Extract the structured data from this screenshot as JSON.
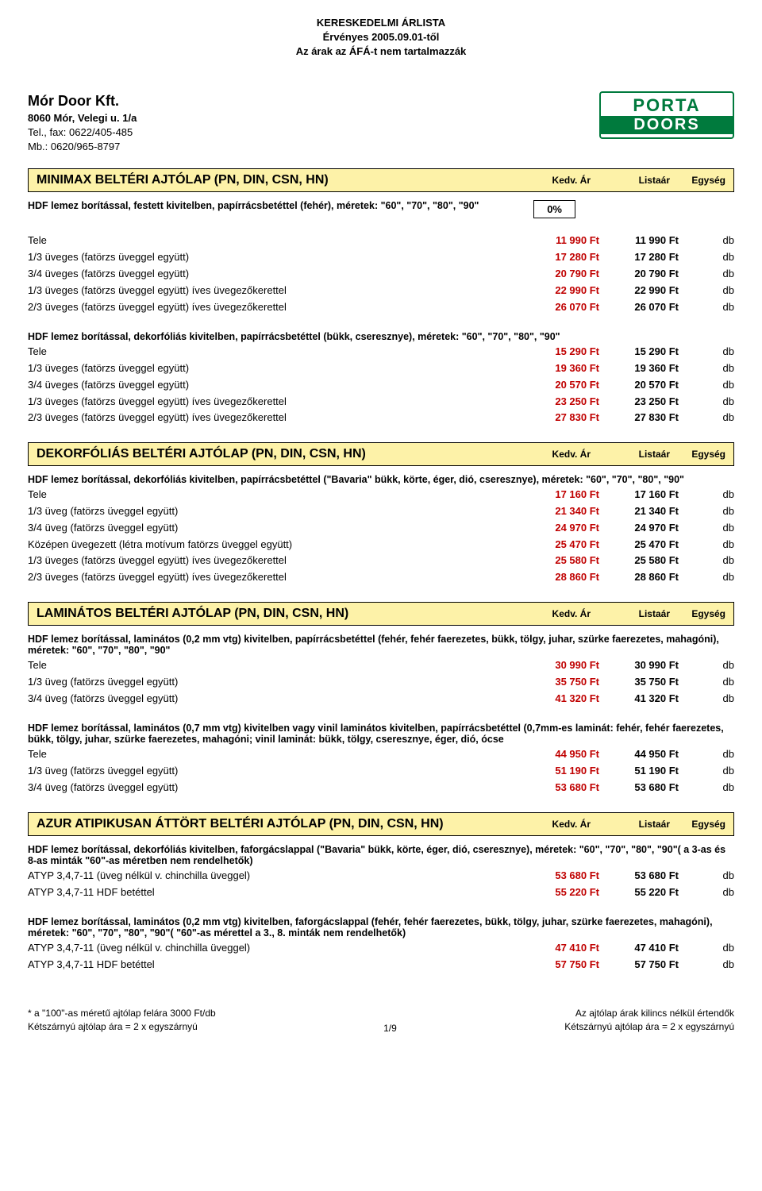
{
  "header": {
    "line1": "KERESKEDELMI ÁRLISTA",
    "line2": "Érvényes 2005.09.01-től",
    "line3": "Az árak az ÁFÁ-t nem tartalmazzák"
  },
  "company": {
    "name": "Mór Door Kft.",
    "addr": "8060 Mór, Velegi u. 1/a",
    "tel": "Tel., fax: 0622/405-485",
    "mob": "Mb.: 0620/965-8797"
  },
  "logo": {
    "l1": "PORTA",
    "l2": "DOORS"
  },
  "cols": {
    "c1": "Kedv. Ár",
    "c2": "Listaár",
    "c3": "Egység"
  },
  "sections": [
    {
      "title": "MINIMAX BELTÉRI AJTÓLAP (PN, DIN, CSN, HN)",
      "discount_desc": "HDF lemez borítással, festett kivitelben, papírrácsbetéttel (fehér), méretek: \"60\", \"70\", \"80\", \"90\"",
      "discount_pct": "0%",
      "groups": [
        {
          "rows": [
            {
              "label": "Tele",
              "p1": "11 990 Ft",
              "p2": "11 990 Ft",
              "unit": "db"
            },
            {
              "label": "1/3 üveges (fatörzs üveggel együtt)",
              "p1": "17 280 Ft",
              "p2": "17 280 Ft",
              "unit": "db"
            },
            {
              "label": "3/4 üveges (fatörzs üveggel együtt)",
              "p1": "20 790 Ft",
              "p2": "20 790 Ft",
              "unit": "db"
            },
            {
              "label": "1/3 üveges (fatörzs üveggel együtt) íves üvegezőkerettel",
              "p1": "22 990 Ft",
              "p2": "22 990 Ft",
              "unit": "db"
            },
            {
              "label": "2/3 üveges (fatörzs üveggel együtt) íves üvegezőkerettel",
              "p1": "26 070 Ft",
              "p2": "26 070 Ft",
              "unit": "db"
            }
          ]
        },
        {
          "subhead": "HDF lemez borítással, dekorfóliás kivitelben, papírrácsbetéttel (bükk, cseresznye), méretek: \"60\", \"70\", \"80\", \"90\"",
          "rows": [
            {
              "label": "Tele",
              "p1": "15 290 Ft",
              "p2": "15 290 Ft",
              "unit": "db"
            },
            {
              "label": "1/3 üveges (fatörzs üveggel együtt)",
              "p1": "19 360 Ft",
              "p2": "19 360 Ft",
              "unit": "db"
            },
            {
              "label": "3/4 üveges (fatörzs üveggel együtt)",
              "p1": "20 570 Ft",
              "p2": "20 570 Ft",
              "unit": "db"
            },
            {
              "label": "1/3 üveges (fatörzs üveggel együtt) íves üvegezőkerettel",
              "p1": "23 250 Ft",
              "p2": "23 250 Ft",
              "unit": "db"
            },
            {
              "label": "2/3 üveges (fatörzs üveggel együtt) íves üvegezőkerettel",
              "p1": "27 830 Ft",
              "p2": "27 830 Ft",
              "unit": "db"
            }
          ]
        }
      ]
    },
    {
      "title": "DEKORFÓLIÁS BELTÉRI AJTÓLAP (PN, DIN, CSN, HN)",
      "groups": [
        {
          "subhead": "HDF lemez borítással, dekorfóliás kivitelben, papírrácsbetéttel (\"Bavaria\" bükk, körte, éger, dió, cseresznye), méretek: \"60\", \"70\", \"80\", \"90\"",
          "rows": [
            {
              "label": "Tele",
              "p1": "17 160 Ft",
              "p2": "17 160 Ft",
              "unit": "db"
            },
            {
              "label": "1/3 üveg (fatörzs üveggel együtt)",
              "p1": "21 340 Ft",
              "p2": "21 340 Ft",
              "unit": "db"
            },
            {
              "label": "3/4 üveg (fatörzs üveggel együtt)",
              "p1": "24 970 Ft",
              "p2": "24 970 Ft",
              "unit": "db"
            },
            {
              "label": "Középen üvegezett (létra motívum fatörzs üveggel együtt)",
              "p1": "25 470 Ft",
              "p2": "25 470 Ft",
              "unit": "db"
            },
            {
              "label": "1/3 üveges (fatörzs üveggel együtt) íves üvegezőkerettel",
              "p1": "25 580 Ft",
              "p2": "25 580 Ft",
              "unit": "db"
            },
            {
              "label": "2/3 üveges (fatörzs üveggel együtt) íves üvegezőkerettel",
              "p1": "28 860 Ft",
              "p2": "28 860 Ft",
              "unit": "db"
            }
          ]
        }
      ]
    },
    {
      "title": "LAMINÁTOS BELTÉRI AJTÓLAP (PN, DIN, CSN, HN)",
      "groups": [
        {
          "subhead": "HDF lemez borítással, laminátos (0,2 mm vtg) kivitelben, papírrácsbetéttel (fehér, fehér faerezetes, bükk, tölgy, juhar, szürke faerezetes, mahagóni), méretek: \"60\", \"70\", \"80\", \"90\"",
          "rows": [
            {
              "label": "Tele",
              "p1": "30 990 Ft",
              "p2": "30 990 Ft",
              "unit": "db"
            },
            {
              "label": "1/3 üveg (fatörzs üveggel együtt)",
              "p1": "35 750 Ft",
              "p2": "35 750 Ft",
              "unit": "db"
            },
            {
              "label": "3/4 üveg (fatörzs üveggel együtt)",
              "p1": "41 320 Ft",
              "p2": "41 320 Ft",
              "unit": "db"
            }
          ]
        },
        {
          "subhead": "HDF lemez borítással, laminátos (0,7 mm vtg) kivitelben vagy vinil laminátos kivitelben, papírrácsbetéttel (0,7mm-es laminát: fehér, fehér faerezetes, bükk, tölgy, juhar, szürke faerezetes, mahagóni; vinil laminát: bükk, tölgy, cseresznye, éger, dió, ócse",
          "rows": [
            {
              "label": "Tele",
              "p1": "44 950 Ft",
              "p2": "44 950 Ft",
              "unit": "db"
            },
            {
              "label": "1/3 üveg (fatörzs üveggel együtt)",
              "p1": "51 190 Ft",
              "p2": "51 190 Ft",
              "unit": "db"
            },
            {
              "label": "3/4 üveg (fatörzs üveggel együtt)",
              "p1": "53 680 Ft",
              "p2": "53 680 Ft",
              "unit": "db"
            }
          ]
        }
      ]
    },
    {
      "title": "AZUR ATIPIKUSAN ÁTTÖRT BELTÉRI AJTÓLAP (PN, DIN, CSN, HN)",
      "groups": [
        {
          "subhead": "HDF lemez borítással,  dekorfóliás kivitelben, faforgácslappal (\"Bavaria\" bükk, körte, éger, dió, cseresznye), méretek: \"60\", \"70\", \"80\", \"90\"( a 3-as  és  8-as minták \"60\"-as méretben nem rendelhetők)",
          "rows": [
            {
              "label": "ATYP 3,4,7-11 (üveg nélkül v. chinchilla üveggel)",
              "p1": "53 680 Ft",
              "p2": "53 680 Ft",
              "unit": "db"
            },
            {
              "label": "ATYP 3,4,7-11 HDF betéttel",
              "p1": "55 220 Ft",
              "p2": "55 220 Ft",
              "unit": "db"
            }
          ]
        },
        {
          "subhead": "HDF lemez borítással,  laminátos (0,2 mm vtg) kivitelben, faforgácslappal (fehér, fehér faerezetes, bükk, tölgy, juhar, szürke faerezetes, mahagóni), méretek: \"60\", \"70\", \"80\", \"90\"( \"60\"-as mérettel a 3., 8. minták nem rendelhetők)",
          "rows": [
            {
              "label": "ATYP 3,4,7-11 (üveg nélkül v. chinchilla üveggel)",
              "p1": "47 410 Ft",
              "p2": "47 410 Ft",
              "unit": "db"
            },
            {
              "label": "ATYP 3,4,7-11 HDF betéttel",
              "p1": "57 750 Ft",
              "p2": "57 750 Ft",
              "unit": "db"
            }
          ]
        }
      ]
    }
  ],
  "footer": {
    "left1": "* a \"100\"-as méretű ajtólap felára 3000 Ft/db",
    "left2": "Kétszárnyú ajtólap ára = 2 x egyszárnyú",
    "right1": "Az ajtólap árak kilincs nélkül értendők",
    "right2": "Kétszárnyú ajtólap ára = 2 x egyszárnyú",
    "page": "1/9"
  }
}
